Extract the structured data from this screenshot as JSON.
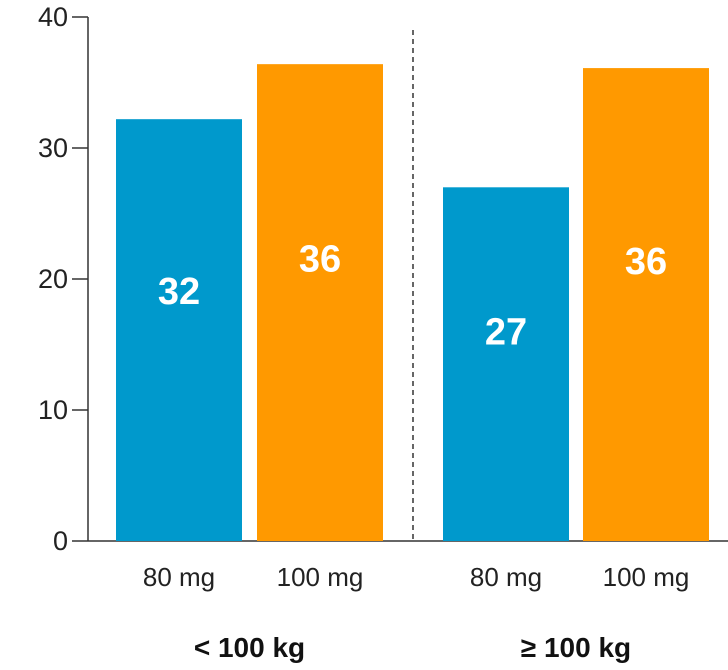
{
  "chart_data": {
    "type": "bar",
    "ylim": [
      0,
      40
    ],
    "yticks": [
      0,
      10,
      20,
      30,
      40
    ],
    "groups": [
      {
        "label": "< 100 kg",
        "bars": [
          {
            "category": "80 mg",
            "value": 32.2,
            "label": "32",
            "color": "#0099cc"
          },
          {
            "category": "100 mg",
            "value": 36.4,
            "label": "36",
            "color": "#ff9900"
          }
        ]
      },
      {
        "label": "≥ 100 kg",
        "bars": [
          {
            "category": "80 mg",
            "value": 27.0,
            "label": "27",
            "color": "#0099cc"
          },
          {
            "category": "100 mg",
            "value": 36.1,
            "label": "36",
            "color": "#ff9900"
          }
        ]
      }
    ],
    "group_divider": "dashed",
    "grid": false,
    "legend": "none"
  }
}
